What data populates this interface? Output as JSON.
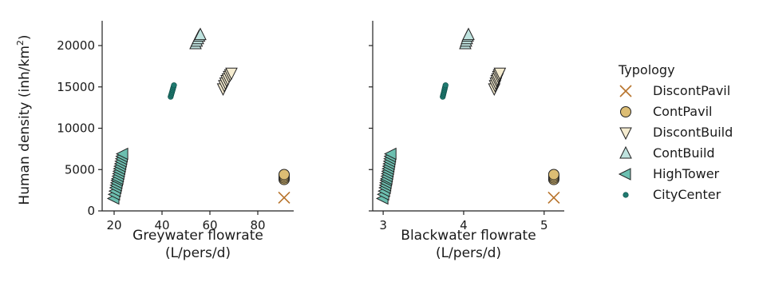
{
  "figure": {
    "ylabel": "Human density (inh/km",
    "ylabel_sup": "2",
    "ylabel_close": ")"
  },
  "legend": {
    "title": "Typology",
    "items": [
      {
        "label": "DiscontPavil",
        "marker": "x",
        "color": "#b8742c"
      },
      {
        "label": "ContPavil",
        "marker": "circle",
        "color": "#dcbd74"
      },
      {
        "label": "DiscontBuild",
        "marker": "triangle-down",
        "color": "#f5ecd0"
      },
      {
        "label": "ContBuild",
        "marker": "triangle-up",
        "color": "#bfe3df"
      },
      {
        "label": "HighTower",
        "marker": "triangle-left",
        "color": "#6cbfb0"
      },
      {
        "label": "CityCenter",
        "marker": "dot",
        "color": "#1f7a70"
      }
    ]
  },
  "chart_data": [
    {
      "type": "scatter",
      "xlabel": [
        "Greywater flowrate",
        "(L/pers/d)"
      ],
      "xlim": [
        15,
        95
      ],
      "ylim": [
        0,
        23000
      ],
      "xticks": [
        20,
        40,
        60,
        80
      ],
      "yticks": [
        0,
        5000,
        10000,
        15000,
        20000
      ],
      "series": [
        {
          "name": "DiscontPavil",
          "points": [
            [
              91,
              1600
            ]
          ]
        },
        {
          "name": "ContPavil",
          "points": [
            [
              91,
              3800
            ],
            [
              91,
              4000
            ],
            [
              91,
              4200
            ],
            [
              91,
              4400
            ]
          ]
        },
        {
          "name": "DiscontBuild",
          "points": [
            [
              65.5,
              14800
            ],
            [
              66,
              15200
            ],
            [
              66.5,
              15500
            ],
            [
              67,
              15800
            ],
            [
              67.5,
              16000
            ],
            [
              68,
              16300
            ],
            [
              68.5,
              16500
            ],
            [
              69,
              16700
            ]
          ]
        },
        {
          "name": "ContBuild",
          "points": [
            [
              54,
              20200
            ],
            [
              54.5,
              20500
            ],
            [
              55,
              20800
            ],
            [
              55.5,
              21100
            ],
            [
              56,
              21300
            ]
          ]
        },
        {
          "name": "HighTower",
          "points": [
            [
              20,
              1500
            ],
            [
              20.3,
              2000
            ],
            [
              20.6,
              2400
            ],
            [
              20.9,
              2800
            ],
            [
              21.1,
              3100
            ],
            [
              21.3,
              3400
            ],
            [
              21.5,
              3700
            ],
            [
              21.7,
              3900
            ],
            [
              21.9,
              4200
            ],
            [
              22.1,
              4500
            ],
            [
              22.3,
              4800
            ],
            [
              22.5,
              5100
            ],
            [
              22.7,
              5400
            ],
            [
              22.9,
              5700
            ],
            [
              23.1,
              6000
            ],
            [
              23.3,
              6300
            ],
            [
              23.5,
              6600
            ],
            [
              23.7,
              6900
            ]
          ]
        },
        {
          "name": "CityCenter",
          "points": [
            [
              43.6,
              13800
            ],
            [
              43.8,
              14000
            ],
            [
              44,
              14200
            ],
            [
              44.2,
              14400
            ],
            [
              44.4,
              14600
            ],
            [
              44.6,
              14800
            ],
            [
              44.8,
              15000
            ],
            [
              45,
              15200
            ]
          ]
        }
      ]
    },
    {
      "type": "scatter",
      "xlabel": [
        "Blackwater flowrate",
        "(L/pers/d)"
      ],
      "xlim": [
        2.87,
        5.25
      ],
      "ylim": [
        0,
        23000
      ],
      "xticks": [
        3,
        4,
        5
      ],
      "yticks": [
        0,
        5000,
        10000,
        15000,
        20000
      ],
      "series": [
        {
          "name": "DiscontPavil",
          "points": [
            [
              5.12,
              1600
            ]
          ]
        },
        {
          "name": "ContPavil",
          "points": [
            [
              5.12,
              3800
            ],
            [
              5.12,
              4000
            ],
            [
              5.12,
              4200
            ],
            [
              5.12,
              4400
            ]
          ]
        },
        {
          "name": "DiscontBuild",
          "points": [
            [
              4.38,
              14800
            ],
            [
              4.39,
              15200
            ],
            [
              4.4,
              15500
            ],
            [
              4.41,
              15800
            ],
            [
              4.42,
              16000
            ],
            [
              4.43,
              16300
            ],
            [
              4.44,
              16500
            ],
            [
              4.45,
              16700
            ]
          ]
        },
        {
          "name": "ContBuild",
          "points": [
            [
              4.02,
              20200
            ],
            [
              4.03,
              20500
            ],
            [
              4.04,
              20800
            ],
            [
              4.05,
              21100
            ],
            [
              4.06,
              21300
            ]
          ]
        },
        {
          "name": "HighTower",
          "points": [
            [
              3.0,
              1500
            ],
            [
              3.01,
              2000
            ],
            [
              3.02,
              2400
            ],
            [
              3.03,
              2800
            ],
            [
              3.035,
              3100
            ],
            [
              3.04,
              3400
            ],
            [
              3.045,
              3700
            ],
            [
              3.05,
              3900
            ],
            [
              3.055,
              4200
            ],
            [
              3.06,
              4500
            ],
            [
              3.065,
              4800
            ],
            [
              3.07,
              5100
            ],
            [
              3.075,
              5400
            ],
            [
              3.08,
              5700
            ],
            [
              3.085,
              6000
            ],
            [
              3.09,
              6300
            ],
            [
              3.095,
              6600
            ],
            [
              3.1,
              6900
            ]
          ]
        },
        {
          "name": "CityCenter",
          "points": [
            [
              3.74,
              13800
            ],
            [
              3.745,
              14000
            ],
            [
              3.75,
              14200
            ],
            [
              3.755,
              14400
            ],
            [
              3.76,
              14600
            ],
            [
              3.765,
              14800
            ],
            [
              3.77,
              15000
            ],
            [
              3.775,
              15200
            ]
          ]
        }
      ]
    }
  ]
}
